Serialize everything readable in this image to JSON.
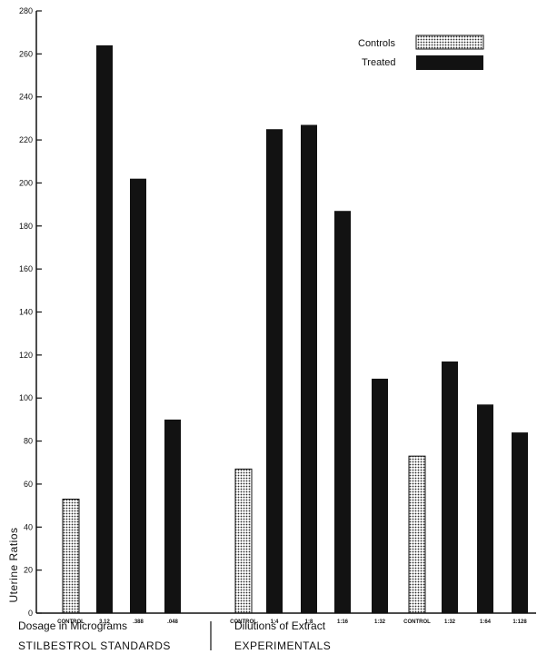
{
  "chart_data": {
    "type": "bar",
    "ylabel": "Uterine Ratios",
    "ylim": [
      0,
      280
    ],
    "yticks": [
      0,
      20,
      40,
      60,
      80,
      100,
      120,
      140,
      160,
      180,
      200,
      220,
      240,
      260,
      280
    ],
    "legend": {
      "placement": "top-right",
      "entries": [
        {
          "label": "Controls",
          "style": "dotted"
        },
        {
          "label": "Treated",
          "style": "solid"
        }
      ]
    },
    "groups": [
      {
        "xlabel": "Dosage in Micrograms",
        "title": "STILBESTROL STANDARDS"
      },
      {
        "xlabel": "Dilutions of Extract",
        "title": "EXPERIMENTALS"
      }
    ],
    "categories": [
      "CONTROL",
      "3.12",
      ".388",
      ".048",
      "CONTROL",
      "1:4",
      "1:8",
      "1:16",
      "1:32",
      "CONTROL",
      "1:32",
      "1:64",
      "1:128"
    ],
    "values": [
      53,
      264,
      202,
      90,
      67,
      225,
      227,
      187,
      109,
      73,
      117,
      97,
      84
    ],
    "kinds": [
      "control",
      "treated",
      "treated",
      "treated",
      "control",
      "treated",
      "treated",
      "treated",
      "treated",
      "control",
      "treated",
      "treated",
      "treated"
    ],
    "colors": {
      "treated": "#121212",
      "control_fill": "#ffffff",
      "control_dot": "#2a2a2a",
      "axis": "#111111"
    }
  }
}
